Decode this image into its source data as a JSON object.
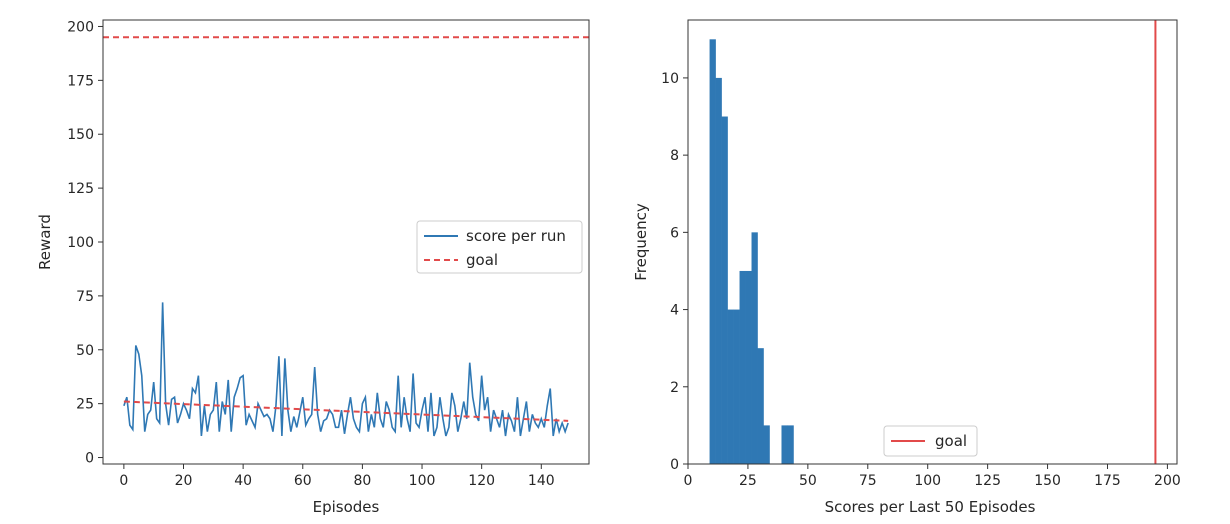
{
  "colors": {
    "series": "#2f78b4",
    "goal": "#e24a4a",
    "axis": "#333333",
    "legend_border": "#cccccc",
    "background": "#ffffff"
  },
  "chart_data": [
    {
      "type": "line",
      "xlabel": "Episodes",
      "ylabel": "Reward",
      "xlim": [
        -7,
        156
      ],
      "ylim": [
        -3,
        203
      ],
      "xticks": [
        "0",
        "20",
        "40",
        "60",
        "80",
        "100",
        "120",
        "140"
      ],
      "yticks": [
        "0",
        "25",
        "50",
        "75",
        "100",
        "125",
        "150",
        "175",
        "200"
      ],
      "grid": false,
      "legend_position": "right",
      "series": [
        {
          "name": "score per run",
          "style": "solid",
          "x": [
            0,
            1,
            2,
            3,
            4,
            5,
            6,
            7,
            8,
            9,
            10,
            11,
            12,
            13,
            14,
            15,
            16,
            17,
            18,
            19,
            20,
            21,
            22,
            23,
            24,
            25,
            26,
            27,
            28,
            29,
            30,
            31,
            32,
            33,
            34,
            35,
            36,
            37,
            38,
            39,
            40,
            41,
            42,
            43,
            44,
            45,
            46,
            47,
            48,
            49,
            50,
            51,
            52,
            53,
            54,
            55,
            56,
            57,
            58,
            59,
            60,
            61,
            62,
            63,
            64,
            65,
            66,
            67,
            68,
            69,
            70,
            71,
            72,
            73,
            74,
            75,
            76,
            77,
            78,
            79,
            80,
            81,
            82,
            83,
            84,
            85,
            86,
            87,
            88,
            89,
            90,
            91,
            92,
            93,
            94,
            95,
            96,
            97,
            98,
            99,
            100,
            101,
            102,
            103,
            104,
            105,
            106,
            107,
            108,
            109,
            110,
            111,
            112,
            113,
            114,
            115,
            116,
            117,
            118,
            119,
            120,
            121,
            122,
            123,
            124,
            125,
            126,
            127,
            128,
            129,
            130,
            131,
            132,
            133,
            134,
            135,
            136,
            137,
            138,
            139,
            140,
            141,
            142,
            143,
            144,
            145,
            146,
            147,
            148,
            149
          ],
          "values": [
            24,
            28,
            15,
            13,
            52,
            48,
            38,
            12,
            20,
            22,
            35,
            18,
            16,
            72,
            25,
            15,
            27,
            28,
            16,
            20,
            25,
            22,
            18,
            32,
            30,
            38,
            10,
            24,
            12,
            20,
            22,
            35,
            12,
            26,
            20,
            36,
            12,
            28,
            32,
            37,
            38,
            15,
            20,
            17,
            14,
            25,
            22,
            19,
            20,
            18,
            12,
            24,
            47,
            10,
            46,
            22,
            12,
            19,
            14,
            21,
            28,
            15,
            18,
            20,
            42,
            20,
            12,
            17,
            18,
            22,
            20,
            14,
            14,
            22,
            11,
            20,
            28,
            18,
            14,
            12,
            25,
            28,
            12,
            20,
            14,
            30,
            18,
            14,
            26,
            22,
            14,
            12,
            38,
            14,
            28,
            18,
            12,
            39,
            16,
            14,
            22,
            28,
            12,
            30,
            10,
            14,
            28,
            18,
            10,
            14,
            30,
            24,
            12,
            18,
            26,
            18,
            44,
            28,
            20,
            17,
            38,
            22,
            28,
            12,
            22,
            18,
            14,
            22,
            10,
            20,
            17,
            12,
            28,
            10,
            18,
            26,
            12,
            20,
            16,
            14,
            18,
            14,
            24,
            32,
            10,
            18,
            12,
            16,
            12,
            16
          ]
        },
        {
          "name": "goal",
          "style": "dashed",
          "x": [
            -7,
            156
          ],
          "values": [
            195,
            195
          ]
        },
        {
          "name": "",
          "style": "dashed",
          "x": [
            0,
            149
          ],
          "values": [
            26,
            17
          ]
        }
      ]
    },
    {
      "type": "bar",
      "subtype": "histogram",
      "xlabel": "Scores per Last 50 Episodes",
      "ylabel": "Frequency",
      "xlim": [
        0,
        204
      ],
      "ylim": [
        0,
        11.5
      ],
      "xticks": [
        "0",
        "25",
        "50",
        "75",
        "100",
        "125",
        "150",
        "175",
        "200"
      ],
      "yticks": [
        "0",
        "2",
        "4",
        "6",
        "8",
        "10"
      ],
      "grid": false,
      "legend_position": "bottom-center",
      "bins": [
        {
          "x0": 9.0,
          "x1": 11.5,
          "value": 11
        },
        {
          "x0": 11.5,
          "x1": 14.0,
          "value": 10
        },
        {
          "x0": 14.0,
          "x1": 16.5,
          "value": 9
        },
        {
          "x0": 16.5,
          "x1": 19.0,
          "value": 4
        },
        {
          "x0": 19.0,
          "x1": 21.5,
          "value": 4
        },
        {
          "x0": 21.5,
          "x1": 24.0,
          "value": 5
        },
        {
          "x0": 24.0,
          "x1": 26.5,
          "value": 5
        },
        {
          "x0": 26.5,
          "x1": 29.0,
          "value": 6
        },
        {
          "x0": 29.0,
          "x1": 31.5,
          "value": 3
        },
        {
          "x0": 31.5,
          "x1": 34.0,
          "value": 1
        },
        {
          "x0": 34.0,
          "x1": 36.5,
          "value": 0
        },
        {
          "x0": 36.5,
          "x1": 39.0,
          "value": 0
        },
        {
          "x0": 39.0,
          "x1": 41.5,
          "value": 1
        },
        {
          "x0": 41.5,
          "x1": 44.0,
          "value": 1
        }
      ],
      "vline": {
        "name": "goal",
        "x": 195
      }
    }
  ]
}
